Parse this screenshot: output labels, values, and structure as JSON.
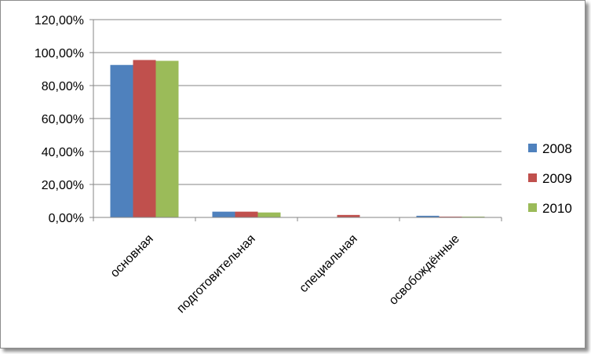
{
  "chart_data": {
    "type": "bar",
    "title": "",
    "xlabel": "",
    "ylabel": "",
    "categories": [
      "основная",
      "подготовительная",
      "специальная",
      "освобождённые"
    ],
    "series": [
      {
        "name": "2008",
        "color": "#4f81bd",
        "values": [
          92.5,
          3.5,
          0.0,
          1.0
        ]
      },
      {
        "name": "2009",
        "color": "#c0504d",
        "values": [
          95.5,
          3.5,
          1.5,
          0.5
        ]
      },
      {
        "name": "2010",
        "color": "#9bbb59",
        "values": [
          95.0,
          3.0,
          0.0,
          0.5
        ]
      }
    ],
    "ylim": [
      0,
      120
    ],
    "yticks": [
      "0,00%",
      "20,00%",
      "40,00%",
      "60,00%",
      "80,00%",
      "100,00%",
      "120,00%"
    ],
    "grid": true,
    "legend_position": "right"
  }
}
